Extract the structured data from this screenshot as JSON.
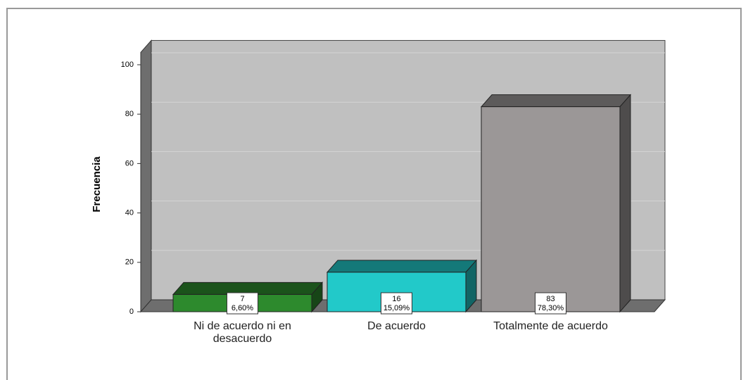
{
  "chart_data": {
    "type": "bar3d",
    "y_label": "Frecuencia",
    "categories": [
      "Ni de acuerdo ni en desacuerdo",
      "De acuerdo",
      "Totalmente de acuerdo"
    ],
    "values": [
      7,
      16,
      83
    ],
    "percent_values": [
      6.6,
      15.09,
      78.3
    ],
    "percent_labels": [
      "6,60%",
      "15,09%",
      "78,30%"
    ],
    "colors": [
      "#2d8a2d",
      "#22c9c9",
      "#9b9797"
    ],
    "ylim": [
      0,
      105
    ],
    "yticks": [
      0,
      20,
      40,
      60,
      80,
      100
    ],
    "grid": true
  }
}
